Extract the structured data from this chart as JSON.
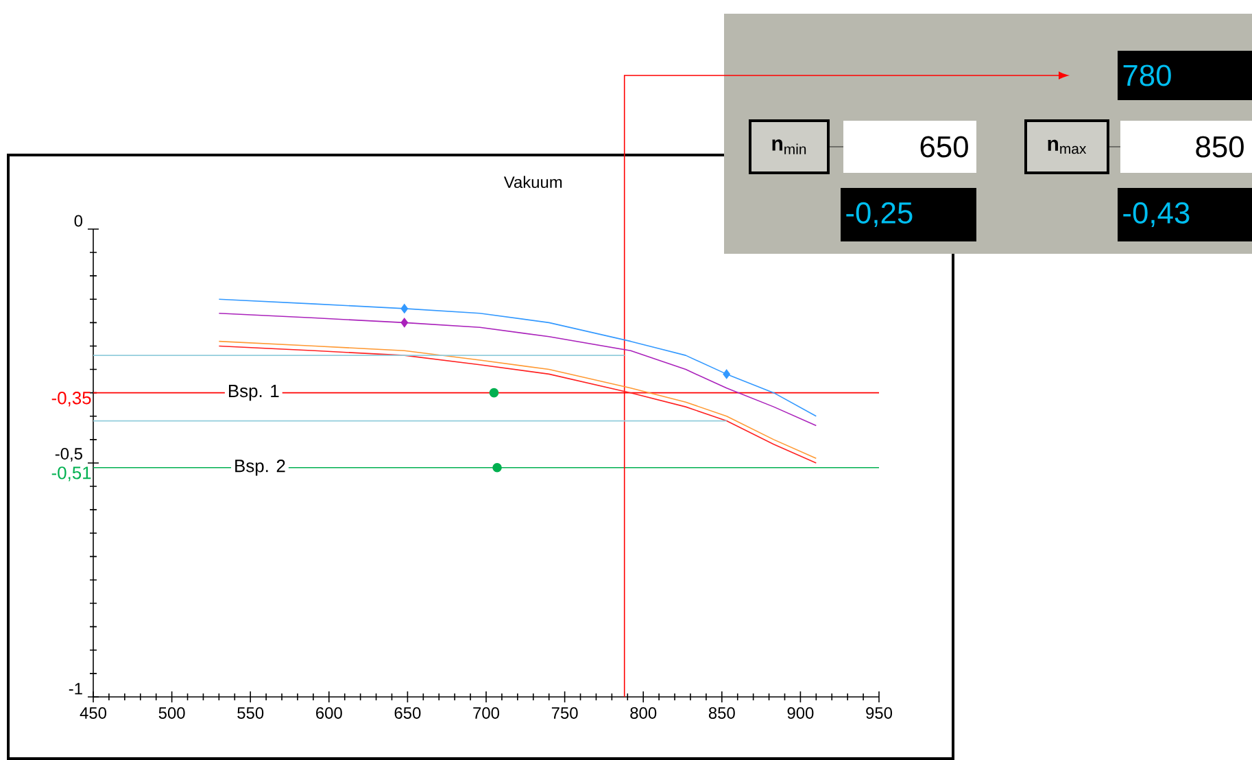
{
  "chart_data": {
    "type": "line",
    "title": "Vakuum",
    "xlim": [
      450,
      950
    ],
    "ylim": [
      -1,
      0
    ],
    "xticks": [
      450,
      500,
      550,
      600,
      650,
      700,
      750,
      800,
      850,
      900,
      950
    ],
    "yticks": [
      0,
      {
        "value": -0.5,
        "label": "-0,5"
      },
      -1
    ],
    "series": [
      {
        "color": "#3399ff",
        "x": [
          530,
          591,
          648,
          696,
          740,
          792,
          827,
          853,
          883,
          910
        ],
        "values": [
          -0.15,
          -0.16,
          -0.17,
          -0.18,
          -0.2,
          -0.24,
          -0.27,
          -0.31,
          -0.35,
          -0.4
        ]
      },
      {
        "color": "#aa22bb",
        "x": [
          530,
          591,
          648,
          696,
          740,
          792,
          827,
          853,
          883,
          910
        ],
        "values": [
          -0.18,
          -0.19,
          -0.2,
          -0.21,
          -0.23,
          -0.26,
          -0.3,
          -0.34,
          -0.38,
          -0.42
        ]
      },
      {
        "color": "#ff9933",
        "x": [
          530,
          591,
          648,
          696,
          740,
          792,
          827,
          853,
          883,
          910
        ],
        "values": [
          -0.24,
          -0.25,
          -0.26,
          -0.28,
          -0.3,
          -0.34,
          -0.37,
          -0.4,
          -0.45,
          -0.49
        ]
      },
      {
        "color": "#ff2222",
        "x": [
          530,
          591,
          648,
          696,
          740,
          792,
          827,
          853,
          883,
          910
        ],
        "values": [
          -0.25,
          -0.26,
          -0.27,
          -0.29,
          -0.31,
          -0.35,
          -0.38,
          -0.41,
          -0.46,
          -0.5
        ]
      },
      {
        "color": "#92cddc",
        "x": [
          450,
          788
        ],
        "values": [
          -0.27,
          -0.27
        ]
      },
      {
        "color": "#92cddc",
        "x": [
          450,
          853
        ],
        "values": [
          -0.41,
          -0.41
        ]
      },
      {
        "type": "scatter",
        "marker": "circle",
        "color": "#00b050",
        "x": [
          705,
          707
        ],
        "values": [
          -0.35,
          -0.51
        ]
      },
      {
        "type": "scatter",
        "marker": "diamond",
        "color": "#3399ff",
        "x": [
          648,
          853
        ],
        "values": [
          -0.17,
          -0.31
        ]
      },
      {
        "type": "scatter",
        "marker": "diamond",
        "color": "#aa22bb",
        "x": [
          648
        ],
        "values": [
          -0.2
        ]
      }
    ],
    "ref_lines": [
      {
        "axis": "y",
        "value": -0.35,
        "label": "-0,35",
        "color": "#ff0000"
      },
      {
        "axis": "y",
        "value": -0.51,
        "label": "-0,51",
        "color": "#00b050"
      },
      {
        "axis": "x",
        "value": 788,
        "color": "#ff0000"
      }
    ],
    "annotations": [
      {
        "text": "Bsp. 1",
        "x": 552,
        "y": -0.35
      },
      {
        "text": "Bsp. 2",
        "x": 556,
        "y": -0.51
      },
      "780",
      "**n**$_{min}$",
      "650",
      "-0,25",
      "**n**$_{max}$",
      "850",
      "-0,43"
    ]
  }
}
